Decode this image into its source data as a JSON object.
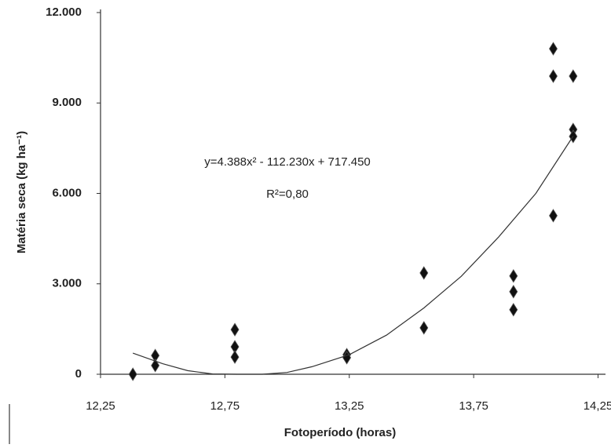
{
  "chart_data": {
    "type": "scatter",
    "x_label": "Fotoperíodo (horas)",
    "y_label": "Matéria seca (kg ha⁻¹)",
    "annotations": [
      "y=4.388x² - 112.230x + 717.450",
      "R²=0,80"
    ],
    "xlim": [
      12.25,
      14.28
    ],
    "ylim": [
      0,
      12000
    ],
    "xticks": [
      {
        "value": 12.25,
        "label": "12,25"
      },
      {
        "value": 12.75,
        "label": "12,75"
      },
      {
        "value": 13.25,
        "label": "13,25"
      },
      {
        "value": 13.75,
        "label": "13,75"
      },
      {
        "value": 14.25,
        "label": "14,25"
      }
    ],
    "yticks": [
      0,
      {
        "value": 3000,
        "label": "3.000"
      },
      {
        "value": 6000,
        "label": "6.000"
      },
      {
        "value": 9000,
        "label": "9.000"
      },
      {
        "value": 12000,
        "label": "12.000"
      }
    ],
    "series": [
      {
        "color": "#111111",
        "x": [
          12.38,
          12.47,
          12.47,
          12.79,
          12.79,
          12.79,
          13.24,
          13.24,
          13.55,
          13.55,
          13.91,
          13.91,
          13.91,
          14.07,
          14.07,
          14.07,
          14.15,
          14.15,
          14.15
        ],
        "values": [
          0,
          620,
          290,
          1480,
          910,
          570,
          650,
          550,
          3360,
          1540,
          3260,
          2740,
          2140,
          10800,
          9890,
          5260,
          9890,
          8120,
          7890
        ]
      },
      {
        "type": "line",
        "color": "#333333",
        "x": [
          12.38,
          12.5,
          12.6,
          12.7,
          12.8,
          12.9,
          13.0,
          13.1,
          13.25,
          13.4,
          13.55,
          13.7,
          13.85,
          14.0,
          14.15
        ],
        "values": [
          700,
          350,
          120,
          10,
          0,
          0,
          60,
          250,
          650,
          1300,
          2200,
          3250,
          4550,
          6000,
          7900
        ]
      }
    ]
  }
}
